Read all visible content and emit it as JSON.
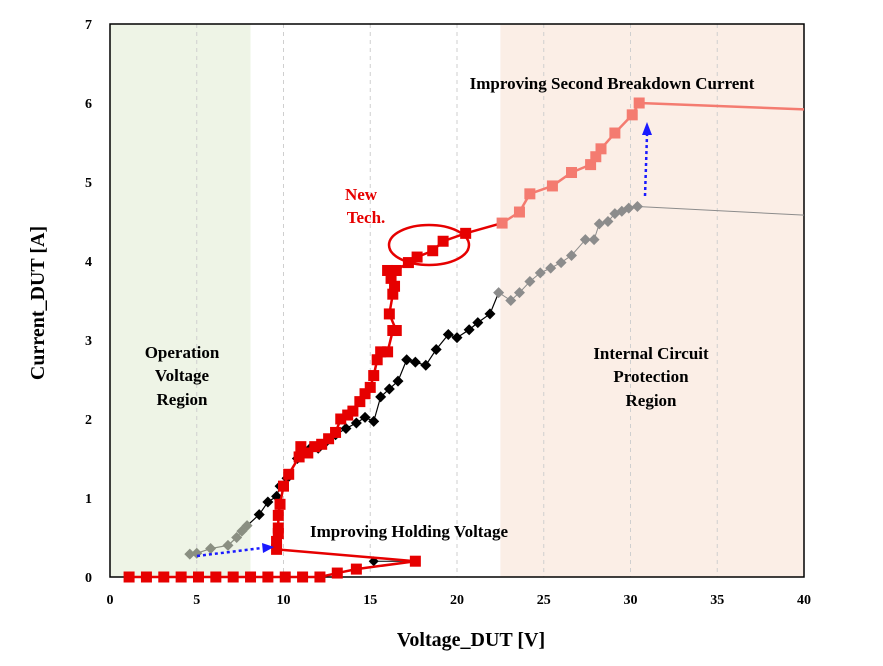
{
  "chart_data": {
    "type": "line",
    "xlabel": "Voltage_DUT [V]",
    "ylabel": "Current_DUT [A]",
    "xlim": [
      0,
      40
    ],
    "ylim": [
      0,
      7
    ],
    "x_ticks": [
      0,
      5,
      10,
      15,
      20,
      25,
      30,
      35,
      40
    ],
    "y_ticks": [
      0,
      1,
      2,
      3,
      4,
      5,
      6,
      7
    ],
    "grid": "dashed vertical",
    "regions": [
      {
        "name": "operation",
        "x": [
          0,
          8.1
        ],
        "color": "#eef4e6"
      },
      {
        "name": "protection",
        "x": [
          22.5,
          40
        ],
        "color": "#fbeee6"
      }
    ],
    "series": [
      {
        "color": "#e60000",
        "marker": "square",
        "points": [
          [
            1.1,
            0.0
          ],
          [
            2.1,
            0.0
          ],
          [
            3.1,
            0.0
          ],
          [
            4.1,
            0.0
          ],
          [
            5.1,
            0.0
          ],
          [
            6.1,
            0.0
          ],
          [
            7.1,
            0.0
          ],
          [
            8.1,
            0.0
          ],
          [
            9.1,
            0.0
          ],
          [
            10.1,
            0.0
          ],
          [
            11.1,
            0.0
          ],
          [
            12.1,
            0.0
          ],
          [
            13.1,
            0.05
          ],
          [
            14.2,
            0.1
          ],
          [
            17.6,
            0.2
          ],
          [
            9.6,
            0.35
          ],
          [
            9.6,
            0.45
          ],
          [
            9.7,
            0.55
          ],
          [
            9.7,
            0.62
          ],
          [
            9.7,
            0.78
          ],
          [
            9.8,
            0.92
          ],
          [
            10.0,
            1.15
          ],
          [
            10.3,
            1.3
          ],
          [
            10.9,
            1.52
          ],
          [
            11.0,
            1.65
          ],
          [
            11.4,
            1.57
          ],
          [
            11.8,
            1.65
          ],
          [
            12.2,
            1.68
          ],
          [
            12.6,
            1.75
          ],
          [
            13.0,
            1.83
          ],
          [
            13.3,
            2.0
          ],
          [
            13.7,
            2.05
          ],
          [
            14.0,
            2.1
          ],
          [
            14.4,
            2.22
          ],
          [
            14.7,
            2.32
          ],
          [
            15.0,
            2.4
          ],
          [
            15.2,
            2.55
          ],
          [
            15.4,
            2.75
          ],
          [
            15.6,
            2.85
          ],
          [
            16.0,
            2.85
          ],
          [
            16.3,
            3.12
          ],
          [
            16.5,
            3.12
          ],
          [
            16.1,
            3.33
          ],
          [
            16.3,
            3.58
          ],
          [
            16.4,
            3.68
          ],
          [
            16.2,
            3.78
          ],
          [
            16.0,
            3.88
          ],
          [
            16.5,
            3.88
          ],
          [
            17.2,
            3.98
          ],
          [
            17.7,
            4.05
          ],
          [
            18.6,
            4.13
          ],
          [
            19.2,
            4.25
          ],
          [
            20.5,
            4.35
          ],
          [
            22.6,
            4.48
          ],
          [
            23.6,
            4.62
          ],
          [
            24.2,
            4.85
          ],
          [
            25.5,
            4.95
          ],
          [
            26.6,
            5.12
          ],
          [
            27.7,
            5.22
          ],
          [
            28.0,
            5.32
          ],
          [
            28.3,
            5.42
          ],
          [
            29.1,
            5.62
          ],
          [
            30.1,
            5.85
          ],
          [
            30.5,
            6.0
          ],
          [
            40.0,
            5.92
          ]
        ]
      },
      {
        "color": "#000000",
        "marker": "diamond",
        "points": [
          [
            4.6,
            0.29
          ],
          [
            5.0,
            0.3
          ],
          [
            5.8,
            0.36
          ],
          [
            6.8,
            0.4
          ],
          [
            7.3,
            0.5
          ],
          [
            7.6,
            0.58
          ],
          [
            7.9,
            0.65
          ],
          [
            8.6,
            0.79
          ],
          [
            9.1,
            0.95
          ],
          [
            9.6,
            1.02
          ],
          [
            9.8,
            1.15
          ],
          [
            10.2,
            1.25
          ],
          [
            10.8,
            1.5
          ],
          [
            11.5,
            1.62
          ],
          [
            12.0,
            1.63
          ],
          [
            12.4,
            1.7
          ],
          [
            13.0,
            1.8
          ],
          [
            13.6,
            1.88
          ],
          [
            14.2,
            1.95
          ],
          [
            14.7,
            2.02
          ],
          [
            15.2,
            1.97
          ],
          [
            15.6,
            2.28
          ],
          [
            16.1,
            2.38
          ],
          [
            16.6,
            2.48
          ],
          [
            17.1,
            2.75
          ],
          [
            17.6,
            2.72
          ],
          [
            18.2,
            2.68
          ],
          [
            18.8,
            2.88
          ],
          [
            19.5,
            3.07
          ],
          [
            20.0,
            3.03
          ],
          [
            20.7,
            3.13
          ],
          [
            21.2,
            3.22
          ],
          [
            21.9,
            3.33
          ],
          [
            22.4,
            3.6
          ],
          [
            23.1,
            3.5
          ],
          [
            23.6,
            3.6
          ],
          [
            24.2,
            3.74
          ],
          [
            24.8,
            3.85
          ],
          [
            25.4,
            3.91
          ],
          [
            26.0,
            3.98
          ],
          [
            26.6,
            4.07
          ],
          [
            27.4,
            4.27
          ],
          [
            27.9,
            4.27
          ],
          [
            28.2,
            4.47
          ],
          [
            28.7,
            4.5
          ],
          [
            29.1,
            4.6
          ],
          [
            29.5,
            4.63
          ],
          [
            29.9,
            4.67
          ],
          [
            30.4,
            4.69
          ],
          [
            40.0,
            4.58
          ]
        ]
      }
    ],
    "annotations": {
      "top": "Improving Second Breakdown Current",
      "new_tech_line1": "New",
      "new_tech_line2": "Tech.",
      "holding": "Improving Holding Voltage",
      "operation": [
        "Operation",
        "Voltage",
        "Region"
      ],
      "protection": [
        "Internal Circuit",
        "Protection",
        "Region"
      ]
    },
    "colors": {
      "red": "#e60000",
      "red_light": "#f47b70",
      "black": "#000000",
      "gray": "#8c8c8c",
      "gray_light": "#8a8f82",
      "blue": "#1a1aff"
    }
  }
}
